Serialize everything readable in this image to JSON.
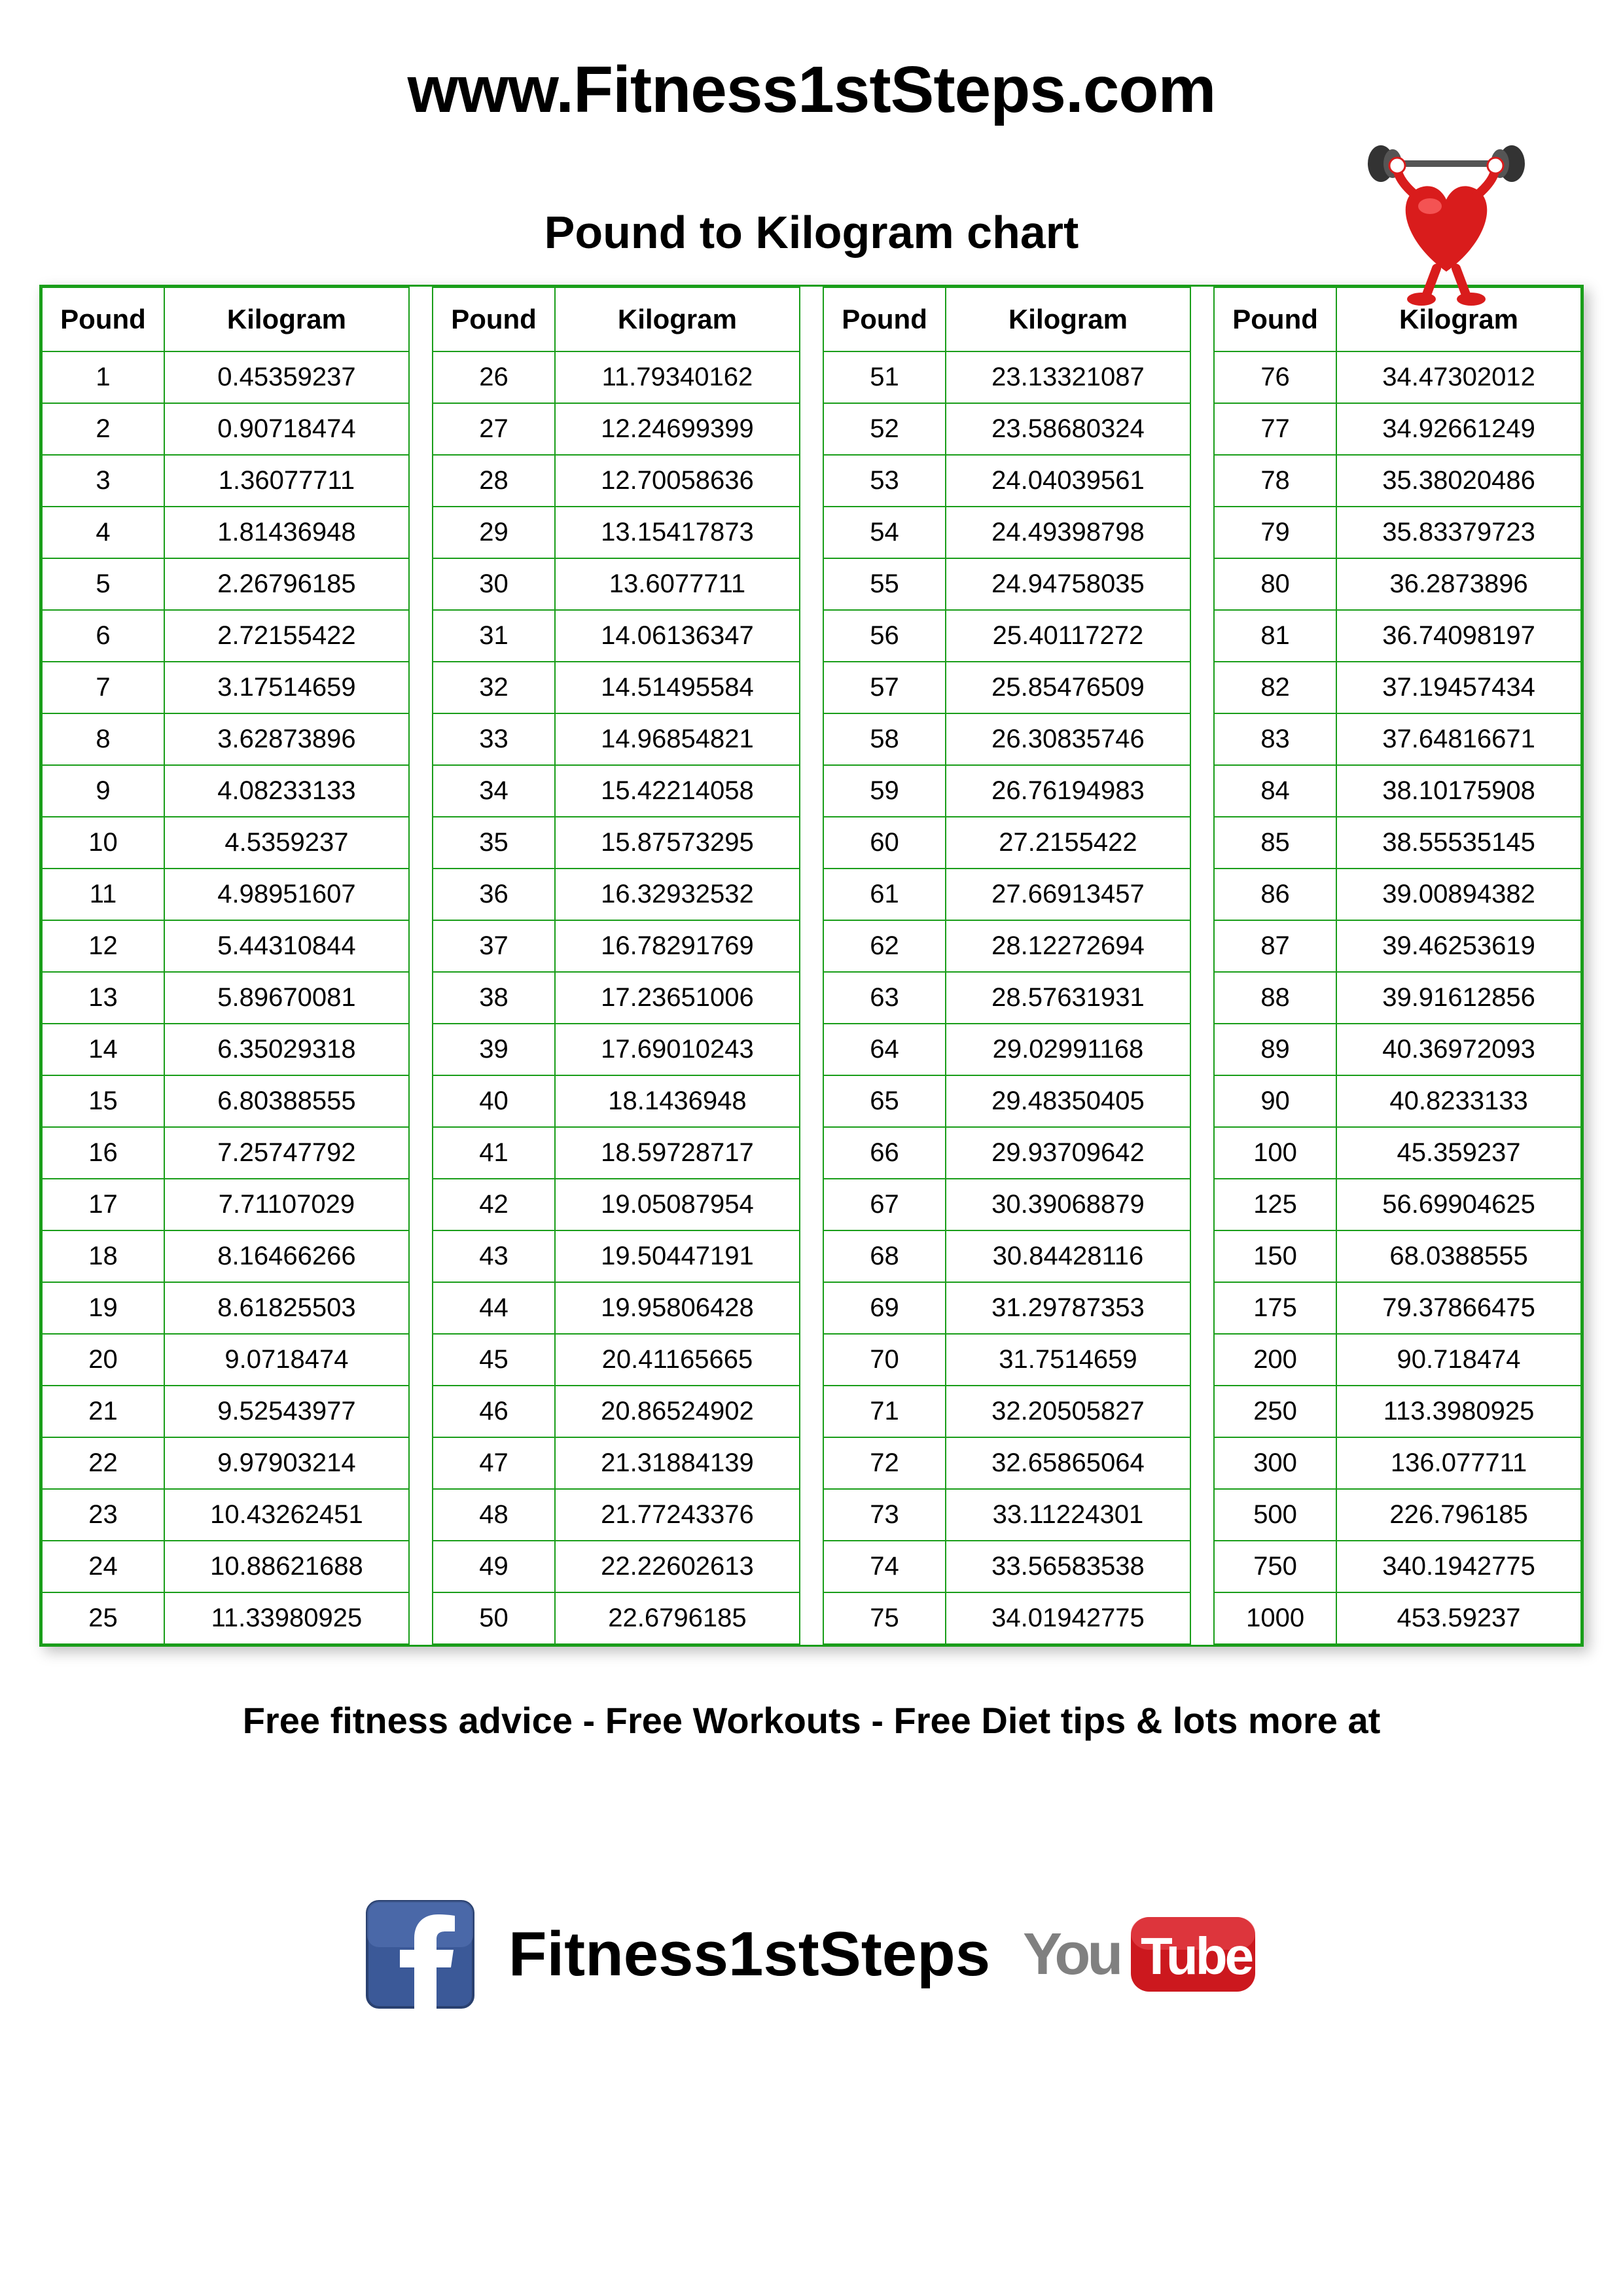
{
  "header": {
    "url": "www.Fitness1stSteps.com"
  },
  "title": "Pound to Kilogram chart",
  "table": {
    "headers": {
      "pound": "Pound",
      "kilogram": "Kilogram"
    },
    "border_color": "#1a9e1a",
    "background_color": "#ffffff",
    "font_size_cell": 40,
    "font_size_header": 42,
    "columns": [
      {
        "rows": [
          {
            "p": "1",
            "k": "0.45359237"
          },
          {
            "p": "2",
            "k": "0.90718474"
          },
          {
            "p": "3",
            "k": "1.36077711"
          },
          {
            "p": "4",
            "k": "1.81436948"
          },
          {
            "p": "5",
            "k": "2.26796185"
          },
          {
            "p": "6",
            "k": "2.72155422"
          },
          {
            "p": "7",
            "k": "3.17514659"
          },
          {
            "p": "8",
            "k": "3.62873896"
          },
          {
            "p": "9",
            "k": "4.08233133"
          },
          {
            "p": "10",
            "k": "4.5359237"
          },
          {
            "p": "11",
            "k": "4.98951607"
          },
          {
            "p": "12",
            "k": "5.44310844"
          },
          {
            "p": "13",
            "k": "5.89670081"
          },
          {
            "p": "14",
            "k": "6.35029318"
          },
          {
            "p": "15",
            "k": "6.80388555"
          },
          {
            "p": "16",
            "k": "7.25747792"
          },
          {
            "p": "17",
            "k": "7.71107029"
          },
          {
            "p": "18",
            "k": "8.16466266"
          },
          {
            "p": "19",
            "k": "8.61825503"
          },
          {
            "p": "20",
            "k": "9.0718474"
          },
          {
            "p": "21",
            "k": "9.52543977"
          },
          {
            "p": "22",
            "k": "9.97903214"
          },
          {
            "p": "23",
            "k": "10.43262451"
          },
          {
            "p": "24",
            "k": "10.88621688"
          },
          {
            "p": "25",
            "k": "11.33980925"
          }
        ]
      },
      {
        "rows": [
          {
            "p": "26",
            "k": "11.79340162"
          },
          {
            "p": "27",
            "k": "12.24699399"
          },
          {
            "p": "28",
            "k": "12.70058636"
          },
          {
            "p": "29",
            "k": "13.15417873"
          },
          {
            "p": "30",
            "k": "13.6077711"
          },
          {
            "p": "31",
            "k": "14.06136347"
          },
          {
            "p": "32",
            "k": "14.51495584"
          },
          {
            "p": "33",
            "k": "14.96854821"
          },
          {
            "p": "34",
            "k": "15.42214058"
          },
          {
            "p": "35",
            "k": "15.87573295"
          },
          {
            "p": "36",
            "k": "16.32932532"
          },
          {
            "p": "37",
            "k": "16.78291769"
          },
          {
            "p": "38",
            "k": "17.23651006"
          },
          {
            "p": "39",
            "k": "17.69010243"
          },
          {
            "p": "40",
            "k": "18.1436948"
          },
          {
            "p": "41",
            "k": "18.59728717"
          },
          {
            "p": "42",
            "k": "19.05087954"
          },
          {
            "p": "43",
            "k": "19.50447191"
          },
          {
            "p": "44",
            "k": "19.95806428"
          },
          {
            "p": "45",
            "k": "20.41165665"
          },
          {
            "p": "46",
            "k": "20.86524902"
          },
          {
            "p": "47",
            "k": "21.31884139"
          },
          {
            "p": "48",
            "k": "21.77243376"
          },
          {
            "p": "49",
            "k": "22.22602613"
          },
          {
            "p": "50",
            "k": "22.6796185"
          }
        ]
      },
      {
        "rows": [
          {
            "p": "51",
            "k": "23.13321087"
          },
          {
            "p": "52",
            "k": "23.58680324"
          },
          {
            "p": "53",
            "k": "24.04039561"
          },
          {
            "p": "54",
            "k": "24.49398798"
          },
          {
            "p": "55",
            "k": "24.94758035"
          },
          {
            "p": "56",
            "k": "25.40117272"
          },
          {
            "p": "57",
            "k": "25.85476509"
          },
          {
            "p": "58",
            "k": "26.30835746"
          },
          {
            "p": "59",
            "k": "26.76194983"
          },
          {
            "p": "60",
            "k": "27.2155422"
          },
          {
            "p": "61",
            "k": "27.66913457"
          },
          {
            "p": "62",
            "k": "28.12272694"
          },
          {
            "p": "63",
            "k": "28.57631931"
          },
          {
            "p": "64",
            "k": "29.02991168"
          },
          {
            "p": "65",
            "k": "29.48350405"
          },
          {
            "p": "66",
            "k": "29.93709642"
          },
          {
            "p": "67",
            "k": "30.39068879"
          },
          {
            "p": "68",
            "k": "30.84428116"
          },
          {
            "p": "69",
            "k": "31.29787353"
          },
          {
            "p": "70",
            "k": "31.7514659"
          },
          {
            "p": "71",
            "k": "32.20505827"
          },
          {
            "p": "72",
            "k": "32.65865064"
          },
          {
            "p": "73",
            "k": "33.11224301"
          },
          {
            "p": "74",
            "k": "33.56583538"
          },
          {
            "p": "75",
            "k": "34.01942775"
          }
        ]
      },
      {
        "rows": [
          {
            "p": "76",
            "k": "34.47302012"
          },
          {
            "p": "77",
            "k": "34.92661249"
          },
          {
            "p": "78",
            "k": "35.38020486"
          },
          {
            "p": "79",
            "k": "35.83379723"
          },
          {
            "p": "80",
            "k": "36.2873896"
          },
          {
            "p": "81",
            "k": "36.74098197"
          },
          {
            "p": "82",
            "k": "37.19457434"
          },
          {
            "p": "83",
            "k": "37.64816671"
          },
          {
            "p": "84",
            "k": "38.10175908"
          },
          {
            "p": "85",
            "k": "38.55535145"
          },
          {
            "p": "86",
            "k": "39.00894382"
          },
          {
            "p": "87",
            "k": "39.46253619"
          },
          {
            "p": "88",
            "k": "39.91612856"
          },
          {
            "p": "89",
            "k": "40.36972093"
          },
          {
            "p": "90",
            "k": "40.8233133"
          },
          {
            "p": "100",
            "k": "45.359237"
          },
          {
            "p": "125",
            "k": "56.69904625"
          },
          {
            "p": "150",
            "k": "68.0388555"
          },
          {
            "p": "175",
            "k": "79.37866475"
          },
          {
            "p": "200",
            "k": "90.718474"
          },
          {
            "p": "250",
            "k": "113.3980925"
          },
          {
            "p": "300",
            "k": "136.077711"
          },
          {
            "p": "500",
            "k": "226.796185"
          },
          {
            "p": "750",
            "k": "340.1942775"
          },
          {
            "p": "1000",
            "k": "453.59237"
          }
        ]
      }
    ]
  },
  "footer": {
    "tagline": "Free fitness advice - Free Workouts - Free Diet tips & lots more at",
    "brand": "Fitness1stSteps"
  },
  "colors": {
    "text": "#000000",
    "table_border": "#1a9e1a",
    "heart": "#d91c1c",
    "facebook_blue": "#3b5998",
    "youtube_red": "#cc181e",
    "youtube_grey": "#808080"
  }
}
